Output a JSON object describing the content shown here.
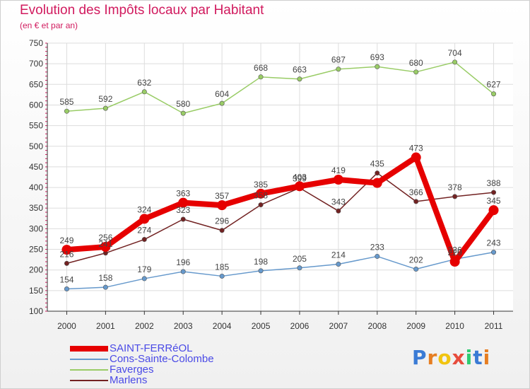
{
  "title": "Evolution des Impôts locaux par Habitant",
  "subtitle": "(en € et par an)",
  "logo_text": "Proxiti",
  "chart_data": {
    "type": "line",
    "x": [
      "2000",
      "2001",
      "2002",
      "2003",
      "2004",
      "2005",
      "2006",
      "2007",
      "2008",
      "2009",
      "2010",
      "2011"
    ],
    "ylim": [
      100,
      750
    ],
    "yticks": [
      100,
      150,
      200,
      250,
      300,
      350,
      400,
      450,
      500,
      550,
      600,
      650,
      700,
      750
    ],
    "grid": true,
    "legend_position": "bottom-left",
    "series": [
      {
        "name": "SAINT-FERRéOL",
        "color": "#e60000",
        "values": [
          249,
          256,
          324,
          363,
          357,
          385,
          403,
          419,
          411,
          473,
          220,
          345
        ],
        "labels": [
          "249",
          "256",
          "324",
          "363",
          "357",
          "385",
          "403",
          "419",
          "",
          "473",
          "220",
          "345"
        ]
      },
      {
        "name": "Cons-Sainte-Colombe",
        "color": "#6699cc",
        "values": [
          154,
          158,
          179,
          196,
          185,
          198,
          205,
          214,
          233,
          202,
          226,
          243
        ],
        "labels": [
          "154",
          "158",
          "179",
          "196",
          "185",
          "198",
          "205",
          "214",
          "233",
          "202",
          "226",
          "243"
        ]
      },
      {
        "name": "Faverges",
        "color": "#99cc66",
        "values": [
          585,
          592,
          632,
          580,
          604,
          668,
          663,
          687,
          693,
          680,
          704,
          627
        ],
        "labels": [
          "585",
          "592",
          "632",
          "580",
          "604",
          "668",
          "663",
          "687",
          "693",
          "680",
          "704",
          "627"
        ]
      },
      {
        "name": "Marlens",
        "color": "#722222",
        "values": [
          216,
          241,
          274,
          323,
          296,
          358,
          399,
          343,
          435,
          366,
          378,
          388
        ],
        "labels": [
          "216",
          "241",
          "274",
          "323",
          "296",
          "358",
          "399",
          "343",
          "435",
          "366",
          "378",
          "388"
        ]
      }
    ]
  }
}
